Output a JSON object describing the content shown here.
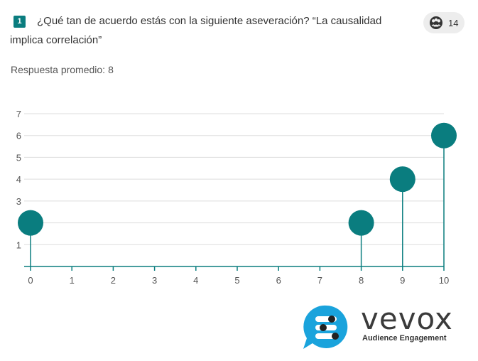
{
  "question": {
    "number": "1",
    "text": "¿Qué tan de acuerdo estás con la siguiente aseveración? “La causalidad implica correlación”"
  },
  "participants": {
    "icon": "participants-icon",
    "count": "14"
  },
  "average": {
    "label": "Respuesta promedio:",
    "value": "8"
  },
  "colors": {
    "accent": "#0a7d7f",
    "grid": "#dddddd"
  },
  "chart_data": {
    "type": "scatter",
    "title": "",
    "xlabel": "",
    "ylabel": "",
    "x_ticks": [
      0,
      1,
      2,
      3,
      4,
      5,
      6,
      7,
      8,
      9,
      10
    ],
    "y_ticks": [
      1,
      2,
      3,
      4,
      5,
      6,
      7
    ],
    "y_tick_labels": [
      "1",
      "",
      "3",
      "4",
      "5",
      "6",
      "7"
    ],
    "xlim": [
      0,
      10
    ],
    "ylim": [
      0,
      7
    ],
    "grid": true,
    "style": "lollipop",
    "points": [
      {
        "x": 0,
        "y": 2
      },
      {
        "x": 8,
        "y": 2
      },
      {
        "x": 9,
        "y": 4
      },
      {
        "x": 10,
        "y": 6
      }
    ]
  },
  "brand": {
    "name": "vevox",
    "tagline": "Audience Engagement",
    "logo_icon": "vevox-logo-icon"
  }
}
